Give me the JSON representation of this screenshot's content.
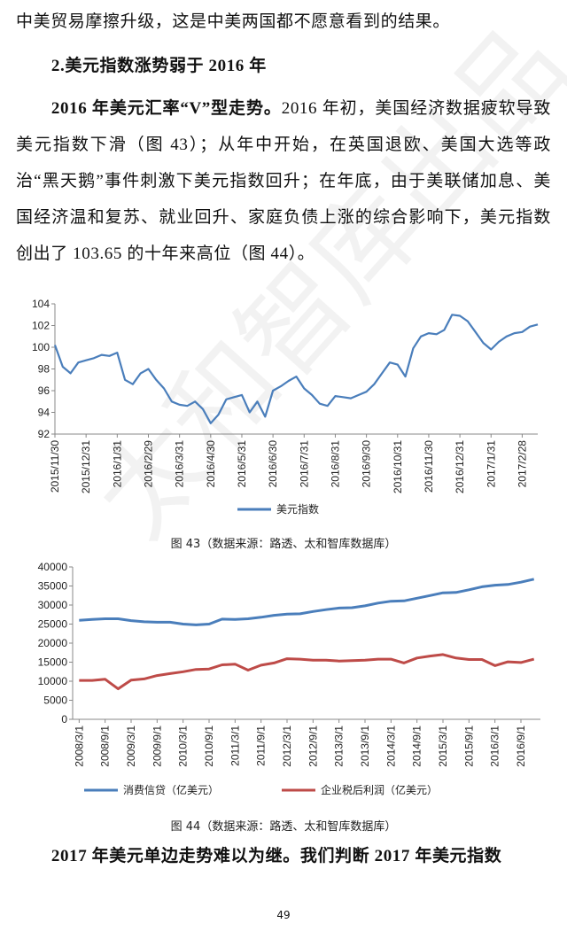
{
  "paragraphs": [
    {
      "text": "中美贸易摩擦升级，这是中美两国都不愿意看到的结果。"
    },
    {
      "heading": "2.美元指数涨势弱于 2016 年"
    },
    {
      "lead": "2016 年美元汇率“V”型走势。",
      "text": "2016 年初，美国经济数据疲软导致美元指数下滑（图 43）；从年中开始，在英国退欧、美国大选等政治“黑天鹅”事件刺激下美元指数回升；在年底，由于美联储加息、美国经济温和复苏、就业回升、家庭负债上涨的综合影响下，美元指数创出了 103.65 的十年来高位（图 44）。"
    }
  ],
  "captions": [
    "图 43（数据来源：路透、太和智库数据库）",
    "图 44（数据来源：路透、太和智库数据库）"
  ],
  "closing": "2017 年美元单边走势难以为继。我们判断 2017 年美元指数",
  "page_number": "49",
  "watermark": "太和智库出品",
  "chart_data": [
    {
      "type": "line",
      "categories": [
        "2015/11/30",
        null,
        null,
        null,
        "2015/12/31",
        null,
        null,
        null,
        "2016/1/31",
        null,
        null,
        null,
        "2016/2/29",
        null,
        null,
        null,
        "2016/3/31",
        null,
        null,
        null,
        "2016/4/30",
        null,
        null,
        null,
        "2016/5/31",
        null,
        null,
        null,
        "2016/6/30",
        null,
        null,
        null,
        "2016/7/31",
        null,
        null,
        null,
        "2016/8/31",
        null,
        null,
        null,
        "2016/9/30",
        null,
        null,
        null,
        "2016/10/31",
        null,
        null,
        null,
        "2016/11/30",
        null,
        null,
        null,
        "2016/12/31",
        null,
        null,
        null,
        "2017/1/31",
        null,
        null,
        null,
        "2017/2/28",
        null,
        null
      ],
      "series": [
        {
          "name": "美元指数",
          "color": "#4a7ebb",
          "values": [
            100.2,
            98.2,
            97.6,
            98.6,
            98.8,
            99.0,
            99.3,
            99.2,
            99.5,
            97.0,
            96.6,
            97.6,
            98.0,
            97.0,
            96.2,
            95.0,
            94.7,
            94.6,
            95.0,
            94.3,
            93.0,
            93.8,
            95.2,
            95.4,
            95.6,
            94.0,
            95.0,
            93.6,
            96.0,
            96.4,
            96.9,
            97.3,
            96.2,
            95.6,
            94.8,
            94.6,
            95.5,
            95.4,
            95.3,
            95.6,
            95.9,
            96.6,
            97.6,
            98.6,
            98.4,
            97.3,
            99.9,
            101.0,
            101.3,
            101.2,
            101.6,
            103.0,
            102.9,
            102.4,
            101.4,
            100.4,
            99.8,
            100.5,
            101.0,
            101.3,
            101.4,
            101.9,
            102.1
          ]
        }
      ],
      "ylim": [
        92,
        104
      ],
      "yticks": [
        92,
        94,
        96,
        98,
        100,
        102,
        104
      ],
      "grid": false,
      "legend": "bottom"
    },
    {
      "type": "line",
      "categories": [
        "2008/3/1",
        null,
        "2008/9/1",
        null,
        "2009/3/1",
        null,
        "2009/9/1",
        null,
        "2010/3/1",
        null,
        "2010/9/1",
        null,
        "2011/3/1",
        null,
        "2011/9/1",
        null,
        "2012/3/1",
        null,
        "2012/9/1",
        null,
        "2013/3/1",
        null,
        "2013/9/1",
        null,
        "2014/3/1",
        null,
        "2014/9/1",
        null,
        "2015/3/1",
        null,
        "2015/9/1",
        null,
        "2016/3/1",
        null,
        "2016/9/1",
        null
      ],
      "series": [
        {
          "name": "消费信贷（亿美元）",
          "color": "#4a7ebb",
          "values": [
            26000,
            26200,
            26400,
            26400,
            25900,
            25600,
            25500,
            25500,
            25000,
            24800,
            25000,
            26300,
            26200,
            26400,
            26800,
            27300,
            27600,
            27700,
            28300,
            28800,
            29200,
            29300,
            29800,
            30500,
            31000,
            31100,
            31800,
            32500,
            33200,
            33300,
            34000,
            34800,
            35200,
            35400,
            36000,
            36800
          ]
        },
        {
          "name": "企业税后利润（亿美元）",
          "color": "#be4b48",
          "values": [
            10200,
            10200,
            10500,
            8000,
            10300,
            10600,
            11500,
            12000,
            12500,
            13100,
            13200,
            14300,
            14500,
            12900,
            14200,
            14800,
            15900,
            15800,
            15500,
            15500,
            15300,
            15400,
            15500,
            15800,
            15800,
            14800,
            16100,
            16600,
            17000,
            16100,
            15700,
            15700,
            14100,
            15100,
            14900,
            15800
          ]
        }
      ],
      "ylim": [
        0,
        40000
      ],
      "yticks": [
        0,
        5000,
        10000,
        15000,
        20000,
        25000,
        30000,
        35000,
        40000
      ],
      "grid": false,
      "legend": "bottom"
    }
  ]
}
